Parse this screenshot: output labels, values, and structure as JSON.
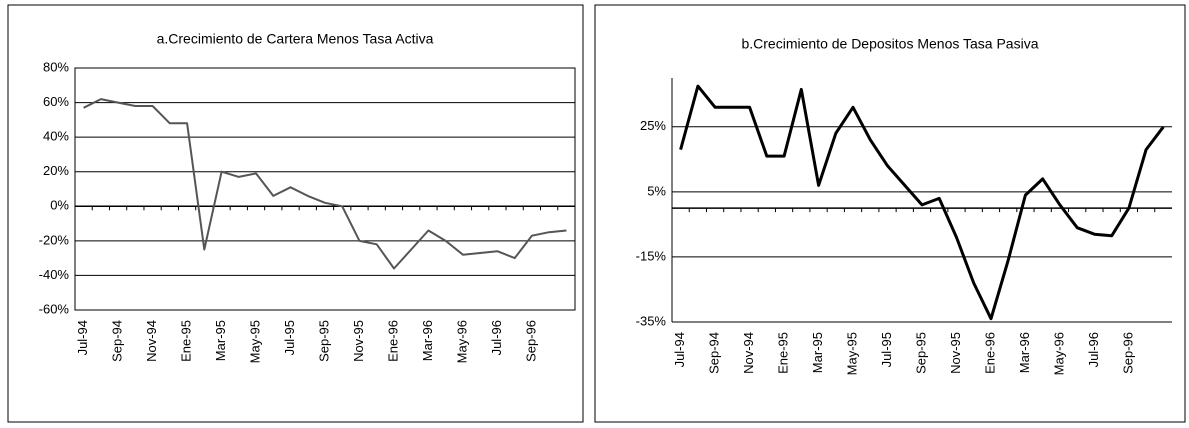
{
  "chart_data": [
    {
      "type": "line",
      "title": "a.Crecimiento de Cartera Menos Tasa Activa",
      "categories": [
        "Jul-94",
        null,
        "Sep-94",
        null,
        "Nov-94",
        null,
        "Ene-95",
        null,
        "Mar-95",
        null,
        "May-95",
        null,
        "Jul-95",
        null,
        "Sep-95",
        null,
        "Nov-95",
        null,
        "Ene-96",
        null,
        "Mar-96",
        null,
        "May-96",
        null,
        "Jul-96",
        null,
        "Sep-96",
        null,
        null
      ],
      "series": [
        {
          "color": "#555555",
          "values": [
            57,
            62,
            60,
            58,
            58,
            48,
            48,
            -25,
            20,
            17,
            19,
            6,
            11,
            6,
            2,
            0,
            -20,
            -22,
            -36,
            -25,
            -14,
            -20,
            -28,
            -27,
            -26,
            -30,
            -17,
            -15,
            -14
          ]
        }
      ],
      "ylim": [
        -60,
        80
      ],
      "yticks": [
        {
          "value": -60,
          "label": "-60%"
        },
        {
          "value": -40,
          "label": "-40%"
        },
        {
          "value": -20,
          "label": "-20%"
        },
        {
          "value": 0,
          "label": "0%"
        },
        {
          "value": 20,
          "label": "20%"
        },
        {
          "value": 40,
          "label": "40%"
        },
        {
          "value": 60,
          "label": "60%"
        },
        {
          "value": 80,
          "label": "80%"
        }
      ],
      "grid": true
    },
    {
      "type": "line",
      "title": "b.Crecimiento de Depositos Menos Tasa Pasiva",
      "categories": [
        "Jul-94",
        null,
        "Sep-94",
        null,
        "Nov-94",
        null,
        "Ene-95",
        null,
        "Mar-95",
        null,
        "May-95",
        null,
        "Jul-95",
        null,
        "Sep-95",
        null,
        "Nov-95",
        null,
        "Ene-96",
        null,
        "Mar-96",
        null,
        "May-96",
        null,
        "Jul-96",
        null,
        "Sep-96",
        null,
        null
      ],
      "series": [
        {
          "color": "#000000",
          "values": [
            18,
            37.5,
            31,
            31,
            31,
            16,
            16,
            36.5,
            7,
            23,
            31,
            21,
            13,
            7,
            1,
            3,
            -9,
            -23,
            -34,
            -16,
            4,
            9,
            1,
            -6,
            -8,
            -8.5,
            0,
            18,
            25
          ]
        }
      ],
      "ylim": [
        -35,
        40
      ],
      "yticks": [
        {
          "value": -35,
          "label": "-35%"
        },
        {
          "value": -15,
          "label": "-15%"
        },
        {
          "value": 5,
          "label": "5%"
        },
        {
          "value": 25,
          "label": "25%"
        }
      ],
      "grid": true
    }
  ]
}
